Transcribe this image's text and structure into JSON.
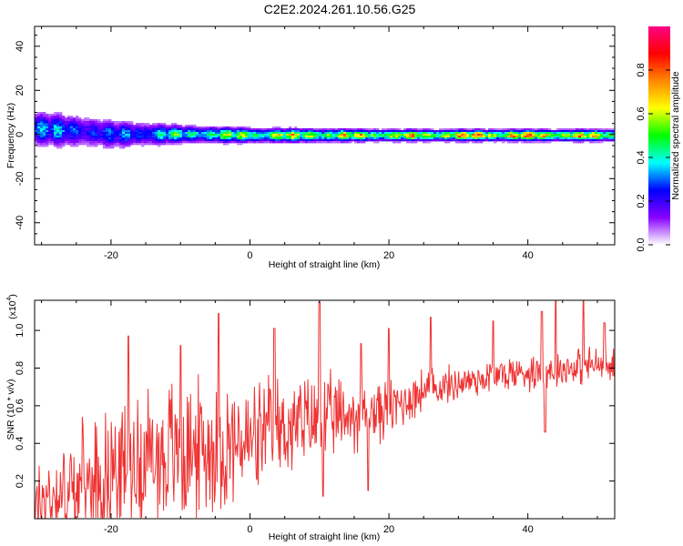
{
  "title": "C2E2.2024.261.10.56.G25",
  "chart_data": [
    {
      "type": "heatmap",
      "title": "C2E2.2024.261.10.56.G25",
      "xlabel": "Height of straight line (km)",
      "ylabel": "Frequency (Hz)",
      "xlim": [
        -31,
        52.5
      ],
      "ylim": [
        -50,
        49
      ],
      "x_ticks": [
        -20,
        0,
        20,
        40
      ],
      "y_ticks": [
        -40,
        -20,
        0,
        20,
        40
      ],
      "x_tick_labels": [
        "-20",
        "0",
        "20",
        "40"
      ],
      "y_tick_labels": [
        "-40",
        "-20",
        "0",
        "20",
        "40"
      ],
      "grid": false,
      "colorbar": {
        "label": "Normalized spectral amplitude",
        "range": [
          0,
          1
        ],
        "ticks": [
          0.0,
          0.2,
          0.4,
          0.6,
          0.8
        ],
        "tick_labels": [
          "0.0",
          "0.2",
          "0.4",
          "0.6",
          "0.8"
        ],
        "colors": [
          "#ffffff",
          "#8800ff",
          "#0000ff",
          "#00ffff",
          "#00ff00",
          "#ffff00",
          "#ff8800",
          "#ff0000",
          "#ff0088"
        ]
      },
      "ridge": {
        "frequency_hz": [
          [
            -31,
            3
          ],
          [
            -25,
            2
          ],
          [
            -20,
            0.5
          ],
          [
            -10,
            0.5
          ],
          [
            0,
            0
          ],
          [
            20,
            0
          ],
          [
            40,
            0
          ],
          [
            52.5,
            0
          ]
        ],
        "peak_amplitude": [
          [
            -31,
            0.45
          ],
          [
            -20,
            0.35
          ],
          [
            -12,
            0.55
          ],
          [
            0,
            0.75
          ],
          [
            10,
            0.8
          ],
          [
            20,
            0.85
          ],
          [
            30,
            0.9
          ],
          [
            40,
            0.95
          ],
          [
            52.5,
            0.8
          ]
        ],
        "spread_hz": [
          [
            -31,
            6
          ],
          [
            -20,
            5
          ],
          [
            -10,
            3
          ],
          [
            0,
            2.5
          ],
          [
            20,
            2
          ],
          [
            52.5,
            2
          ]
        ]
      }
    },
    {
      "type": "line",
      "xlabel": "Height of straight line (km)",
      "ylabel": "SNR (10 * v/v)",
      "y_multiplier": "(x10",
      "y_multiplier_exp": "4",
      "y_multiplier_close": ")",
      "xlim": [
        -31,
        52.5
      ],
      "ylim": [
        0,
        1.16
      ],
      "x_ticks": [
        -20,
        0,
        20,
        40
      ],
      "y_ticks": [
        0.2,
        0.4,
        0.6,
        0.8,
        1.0
      ],
      "x_tick_labels": [
        "-20",
        "0",
        "20",
        "40"
      ],
      "y_tick_labels": [
        "0.2",
        "0.4",
        "0.6",
        "0.8",
        "1.0"
      ],
      "grid": false,
      "color": "#ee3333",
      "trend": {
        "x": [
          -31,
          -25,
          -20,
          -15,
          -10,
          -5,
          0,
          5,
          10,
          15,
          20,
          25,
          30,
          35,
          40,
          45,
          50,
          52.5
        ],
        "y": [
          0.1,
          0.15,
          0.25,
          0.32,
          0.35,
          0.38,
          0.4,
          0.48,
          0.52,
          0.55,
          0.58,
          0.68,
          0.72,
          0.76,
          0.78,
          0.8,
          0.82,
          0.8
        ]
      },
      "peaks": [
        {
          "x": -17.5,
          "y": 0.97
        },
        {
          "x": -10.0,
          "y": 0.92
        },
        {
          "x": -4.5,
          "y": 1.09
        },
        {
          "x": 3.5,
          "y": 1.01
        },
        {
          "x": 10.0,
          "y": 1.15
        },
        {
          "x": 16.0,
          "y": 0.93
        },
        {
          "x": 20.0,
          "y": 1.01
        },
        {
          "x": 26.0,
          "y": 1.07
        },
        {
          "x": 35.0,
          "y": 1.05
        },
        {
          "x": 42.0,
          "y": 1.1
        },
        {
          "x": 44.0,
          "y": 1.16
        },
        {
          "x": 48.0,
          "y": 1.16
        },
        {
          "x": 51.0,
          "y": 1.04
        }
      ],
      "troughs": [
        {
          "x": -30.5,
          "y": 0.0
        },
        {
          "x": 10.5,
          "y": 0.12
        },
        {
          "x": 17.0,
          "y": 0.15
        },
        {
          "x": 42.5,
          "y": 0.46
        }
      ]
    }
  ]
}
